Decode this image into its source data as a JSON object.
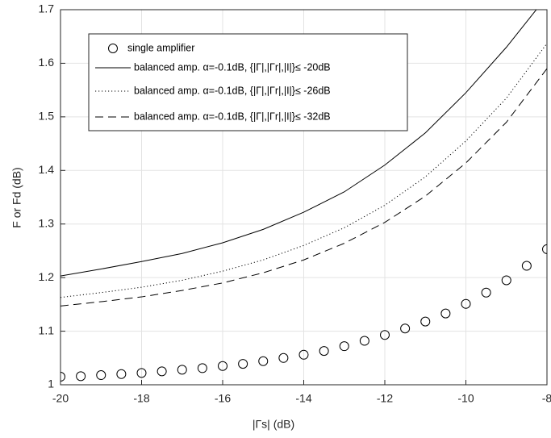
{
  "chart_data": {
    "type": "line",
    "xlabel": "|Γs| (dB)",
    "ylabel": "F or Fd (dB)",
    "xlim": [
      -20,
      -8
    ],
    "xticks": [
      -20,
      -18,
      -16,
      -14,
      -12,
      -10,
      -8
    ],
    "ylim": [
      1,
      1.7
    ],
    "yticks": [
      1,
      1.1,
      1.2,
      1.3,
      1.4,
      1.5,
      1.6,
      1.7
    ],
    "grid": true,
    "legend": "upper left",
    "series": [
      {
        "name": "single amplifier",
        "color": "#000000",
        "style": "markers",
        "x": [
          -20,
          -19.5,
          -19,
          -18.5,
          -18,
          -17.5,
          -17,
          -16.5,
          -16,
          -15.5,
          -15,
          -14.5,
          -14,
          -13.5,
          -13,
          -12.5,
          -12,
          -11.5,
          -11,
          -10.5,
          -10,
          -9.5,
          -9,
          -8.5,
          -8
        ],
        "values": [
          1.015,
          1.016,
          1.018,
          1.02,
          1.022,
          1.025,
          1.028,
          1.031,
          1.035,
          1.039,
          1.044,
          1.05,
          1.056,
          1.063,
          1.072,
          1.082,
          1.093,
          1.105,
          1.118,
          1.133,
          1.151,
          1.172,
          1.195,
          1.222,
          1.253
        ]
      },
      {
        "name": "balanced amp. α=-0.1dB, {|Γ|,|Γr|,|I|}≤ -20dB",
        "color": "#000000",
        "style": "solid",
        "x": [
          -20,
          -19,
          -18,
          -17,
          -16,
          -15,
          -14,
          -13,
          -12,
          -11,
          -10,
          -9,
          -8
        ],
        "values": [
          1.203,
          1.216,
          1.23,
          1.245,
          1.265,
          1.29,
          1.322,
          1.36,
          1.41,
          1.47,
          1.545,
          1.63,
          1.725
        ]
      },
      {
        "name": "balanced amp. α=-0.1dB, {|Γ|,|Γr|,|I|}≤ -26dB",
        "color": "#000000",
        "style": "dotted",
        "x": [
          -20,
          -19,
          -18,
          -17,
          -16,
          -15,
          -14,
          -13,
          -12,
          -11,
          -10,
          -9,
          -8
        ],
        "values": [
          1.163,
          1.172,
          1.182,
          1.195,
          1.212,
          1.233,
          1.26,
          1.293,
          1.335,
          1.388,
          1.455,
          1.535,
          1.637
        ]
      },
      {
        "name": "balanced amp. α=-0.1dB, {|Γ|,|Γr|,|I|}≤ -32dB",
        "color": "#000000",
        "style": "dashed",
        "x": [
          -20,
          -19,
          -18,
          -17,
          -16,
          -15,
          -14,
          -13,
          -12,
          -11,
          -10,
          -9,
          -8
        ],
        "values": [
          1.147,
          1.155,
          1.164,
          1.176,
          1.19,
          1.209,
          1.233,
          1.264,
          1.303,
          1.352,
          1.414,
          1.49,
          1.59
        ]
      }
    ]
  }
}
